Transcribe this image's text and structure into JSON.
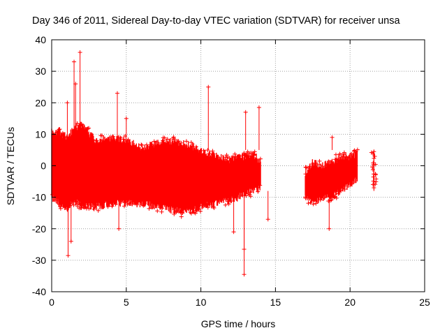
{
  "chart_data": {
    "type": "scatter",
    "title": "Day 346 of 2011, Sidereal Day-to-day VTEC variation (SDTVAR) for receiver unsa",
    "xlabel": "GPS time / hours",
    "ylabel": "SDTVAR / TECUs",
    "xlim": [
      0,
      25
    ],
    "ylim": [
      -40,
      40
    ],
    "x_ticks": [
      0,
      5,
      10,
      15,
      20,
      25
    ],
    "y_ticks": [
      -40,
      -30,
      -20,
      -10,
      0,
      10,
      20,
      30,
      40
    ],
    "x_tick_labels": [
      "0",
      "5",
      "10",
      "15",
      "20",
      "25"
    ],
    "y_tick_labels": [
      "-40",
      "-30",
      "-20",
      "-10",
      "0",
      "10",
      "20",
      "30",
      "40"
    ],
    "grid": true,
    "marker": "+",
    "color": "#ff0000",
    "series": [
      {
        "name": "SDTVAR",
        "envelope_hours": [
          0.0,
          0.5,
          1.0,
          1.5,
          2.0,
          3.0,
          4.0,
          5.0,
          6.0,
          7.0,
          8.0,
          9.0,
          10.0,
          11.0,
          12.0,
          13.0,
          13.5,
          14.0
        ],
        "envelope_upper": [
          11,
          11,
          9,
          12,
          13,
          8,
          9,
          8,
          6,
          7,
          8,
          7,
          5,
          3,
          2,
          3,
          4,
          1
        ],
        "envelope_lower": [
          -10,
          -12,
          -14,
          -11,
          -13,
          -13,
          -12,
          -12,
          -12,
          -13,
          -14,
          -15,
          -13,
          -12,
          -11,
          -9,
          -8,
          -7
        ],
        "envelope2_hours": [
          17.0,
          17.5,
          18.0,
          18.5,
          19.0,
          19.5,
          20.0,
          20.5
        ],
        "envelope2_upper": [
          -2,
          1,
          0,
          1,
          2,
          3,
          3,
          4
        ],
        "envelope2_lower": [
          -10,
          -11,
          -11,
          -10,
          -9,
          -8,
          -6,
          -4
        ],
        "spikes": [
          {
            "x": 1.1,
            "y": -28.5
          },
          {
            "x": 1.3,
            "y": -24
          },
          {
            "x": 1.5,
            "y": 33
          },
          {
            "x": 1.6,
            "y": 26
          },
          {
            "x": 1.9,
            "y": 36
          },
          {
            "x": 1.05,
            "y": 20
          },
          {
            "x": 4.4,
            "y": 23
          },
          {
            "x": 4.5,
            "y": -20
          },
          {
            "x": 5.0,
            "y": 15
          },
          {
            "x": 10.5,
            "y": 25
          },
          {
            "x": 12.2,
            "y": -21
          },
          {
            "x": 12.9,
            "y": -26.5
          },
          {
            "x": 12.9,
            "y": -34.5
          },
          {
            "x": 13.0,
            "y": 17
          },
          {
            "x": 13.9,
            "y": 18.5
          },
          {
            "x": 14.5,
            "y": -17
          },
          {
            "x": 18.6,
            "y": -20
          },
          {
            "x": 18.8,
            "y": 9
          },
          {
            "x": 21.6,
            "y": 4.5
          },
          {
            "x": 21.6,
            "y": -7
          }
        ],
        "sparse_cluster": {
          "x_range": [
            21.4,
            21.75
          ],
          "y_range": [
            -7,
            4.5
          ]
        }
      }
    ]
  }
}
